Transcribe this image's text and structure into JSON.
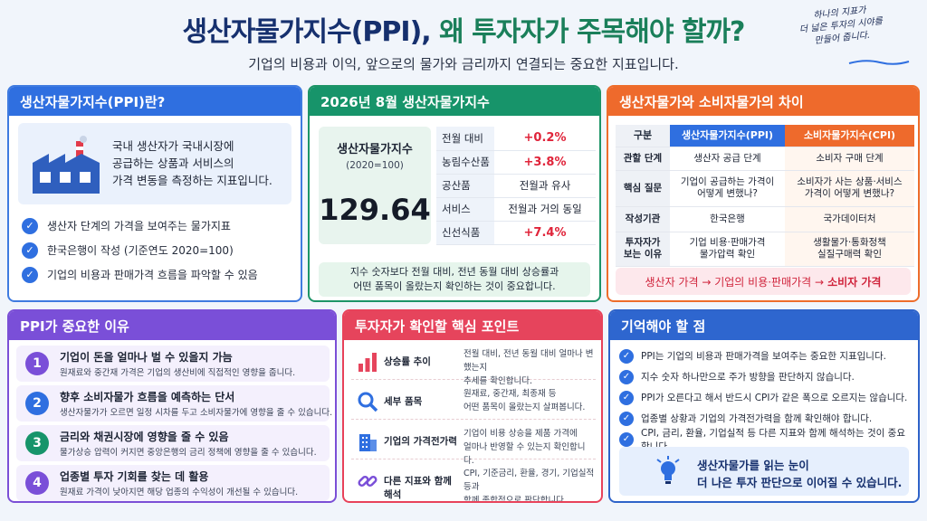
{
  "header": {
    "title_main": "생산자물가지수(PPI), ",
    "title_highlight": "왜 투자자가 주목해야 할까?",
    "subtitle": "기업의 비용과 이익, 앞으로의 물가와 금리까지 연결되는 중요한 지표입니다.",
    "note_line1": "하나의 지표가",
    "note_line2": "더 넓은 투자의 시야를",
    "note_line3": "만들어 줍니다."
  },
  "panel_what": {
    "title": "생산자물가지수(PPI)란?",
    "icon": "factory-icon",
    "desc_line1": "국내 생산자가 국내시장에",
    "desc_line2": "공급하는 상품과 서비스의",
    "desc_line3": "가격 변동을 측정하는 지표입니다.",
    "items": [
      "생산자 단계의 가격을 보여주는 물가지표",
      "한국은행이 작성 (기준연도 2020=100)",
      "기업의 비용과 판매가격 흐름을 파악할 수 있음"
    ]
  },
  "panel_index": {
    "title": "2026년 8월 생산자물가지수",
    "label": "생산자물가지수",
    "base": "(2020=100)",
    "value": "129.64",
    "rows": [
      {
        "k": "전월 대비",
        "v": "+0.2%"
      },
      {
        "k": "농림수산품",
        "v": "+3.8%"
      },
      {
        "k": "공산품",
        "v": "전월과 유사"
      },
      {
        "k": "서비스",
        "v": "전월과 거의 동일"
      },
      {
        "k": "신선식품",
        "v": "+7.4%"
      }
    ],
    "foot_line1": "지수 숫자보다 전월 대비, 전년 동월 대비 상승률과",
    "foot_line2": "어떤 품목이 올랐는지 확인하는 것이 중요합니다."
  },
  "panel_compare": {
    "title": "생산자물가와 소비자물가의 차이",
    "headers": [
      "구분",
      "생산자물가지수(PPI)",
      "소비자물가지수(CPI)"
    ],
    "rows": [
      {
        "k": "관할 단계",
        "ppi": "생산자 공급 단계",
        "cpi": "소비자 구매 단계"
      },
      {
        "k": "핵심 질문",
        "ppi": "기업이 공급하는 가격이\n어떻게 변했나?",
        "cpi": "소비자가 사는 상품·서비스\n가격이 어떻게 변했나?"
      },
      {
        "k": "작성기관",
        "ppi": "한국은행",
        "cpi": "국가데이터처"
      },
      {
        "k": "투자자가\n보는 이유",
        "ppi": "기업 비용·판매가격\n물가압력 확인",
        "cpi": "생활물가·통화정책\n실질구매력 확인"
      }
    ],
    "foot_a": "생산자 가격 → 기업의 비용·판매가격 →",
    "foot_b": "소비자 가격"
  },
  "panel_why": {
    "title": "PPI가 중요한 이유",
    "items": [
      {
        "n": "1",
        "t": "기업이 돈을 얼마나 벌 수 있을지 가늠",
        "d": "원재료와 중간재 가격은 기업의 생산비에 직접적인 영향을 줍니다.",
        "color": "#7a4fd8"
      },
      {
        "n": "2",
        "t": "향후 소비자물가 흐름을 예측하는 단서",
        "d": "생산자물가가 오르면 일정 시차를 두고 소비자물가에 영향을 줄 수 있습니다.",
        "color": "#2f6fe0"
      },
      {
        "n": "3",
        "t": "금리와 채권시장에 영향을 줄 수 있음",
        "d": "물가상승 압력이 커지면 중앙은행의 금리 정책에 영향을 줄 수 있습니다.",
        "color": "#17946a"
      },
      {
        "n": "4",
        "t": "업종별 투자 기회를 찾는 데 활용",
        "d": "원재료 가격이 낮아지면 해당 업종의 수익성이 개선될 수 있습니다.",
        "color": "#7a4fd8"
      }
    ]
  },
  "panel_points": {
    "title": "투자자가 확인할 핵심 포인트",
    "items": [
      {
        "icon": "bar-chart-icon",
        "t": "상승률 추이",
        "d1": "전월 대비, 전년 동월 대비 얼마나 변했는지",
        "d2": "추세를 확인합니다."
      },
      {
        "icon": "magnifier-icon",
        "t": "세부 품목",
        "d1": "원재료, 중간재, 최종재 등",
        "d2": "어떤 품목이 올랐는지 살펴봅니다."
      },
      {
        "icon": "building-icon",
        "t": "기업의 가격전가력",
        "d1": "기업이 비용 상승을 제품 가격에",
        "d2": "얼마나 반영할 수 있는지 확인합니다."
      },
      {
        "icon": "link-icon",
        "t": "다른 지표와 함께 해석",
        "d1": "CPI, 기준금리, 환율, 경기, 기업실적 등과",
        "d2": "함께 종합적으로 판단합니다."
      }
    ]
  },
  "panel_remember": {
    "title": "기억해야 할 점",
    "items": [
      "PPI는 기업의 비용과 판매가격을 보여주는 중요한 지표입니다.",
      "지수 숫자 하나만으로 주가 방향을 판단하지 않습니다.",
      "PPI가 오른다고 해서 반드시 CPI가 같은 폭으로 오르지는 않습니다.",
      "업종별 상황과 기업의 가격전가력을 함께 확인해야 합니다.",
      "CPI, 금리, 환율, 기업실적 등 다른 지표와 함께 해석하는 것이 중요합니다."
    ],
    "tip_line1": "생산자물가를 읽는 눈이",
    "tip_line2": "더 나은 투자 판단으로 이어질 수 있습니다."
  },
  "colors": {
    "blue": "#2f6fe0",
    "green": "#17946a",
    "orange": "#ee6a2c",
    "purple": "#7a4fd8",
    "red": "#e6445c",
    "up": "#e0243a"
  }
}
